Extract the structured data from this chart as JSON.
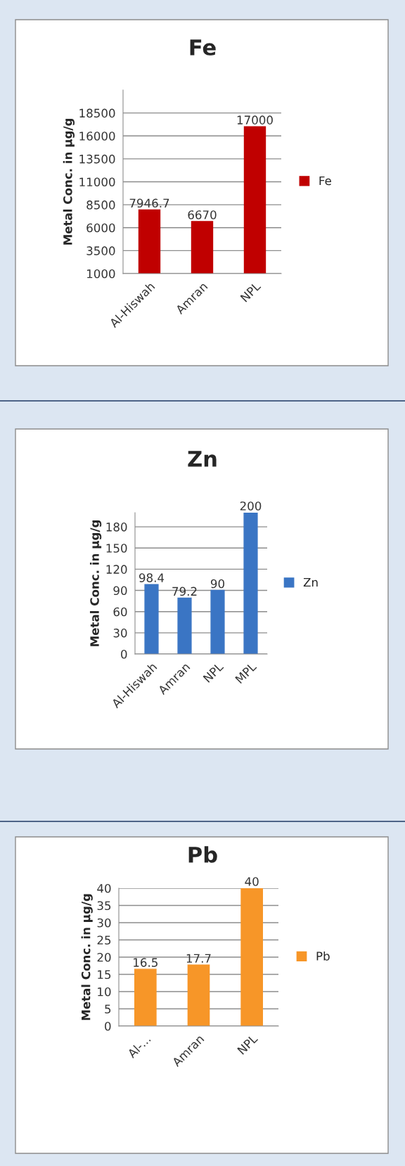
{
  "chart_data": [
    {
      "type": "bar",
      "title": "Fe",
      "ylabel": "Metal Conc. in µg/g",
      "categories": [
        "Al-Hiswah",
        "Amran",
        "NPL"
      ],
      "series": [
        {
          "name": "Fe",
          "color": "#c00000",
          "values": [
            7946.7,
            6670,
            17000
          ]
        }
      ],
      "ylim": [
        1000,
        21000
      ],
      "yticks": [
        1000,
        3500,
        6000,
        8500,
        11000,
        13500,
        16000,
        18500
      ],
      "grid": "y",
      "legend": "right",
      "data_labels": true
    },
    {
      "type": "bar",
      "title": "Zn",
      "ylabel": "Metal Conc. in µg/g",
      "categories": [
        "Al-Hiswah",
        "Amran",
        "NPL",
        "MPL"
      ],
      "series": [
        {
          "name": "Zn",
          "color": "#3a75c4",
          "values": [
            98.4,
            79.2,
            90,
            200
          ]
        }
      ],
      "ylim": [
        0,
        200
      ],
      "yticks": [
        0,
        30,
        60,
        90,
        120,
        150,
        180
      ],
      "grid": "y",
      "legend": "right",
      "data_labels": true
    },
    {
      "type": "bar",
      "title": "Pb",
      "ylabel": "Metal Conc. in µg/g",
      "categories": [
        "Al-...",
        "Amran",
        "NPL"
      ],
      "series": [
        {
          "name": "Pb",
          "color": "#f79628",
          "values": [
            16.5,
            17.7,
            40
          ]
        }
      ],
      "ylim": [
        0,
        40
      ],
      "yticks": [
        0,
        5,
        10,
        15,
        20,
        25,
        30,
        35,
        40
      ],
      "grid": "y",
      "legend": "right",
      "data_labels": true
    }
  ]
}
